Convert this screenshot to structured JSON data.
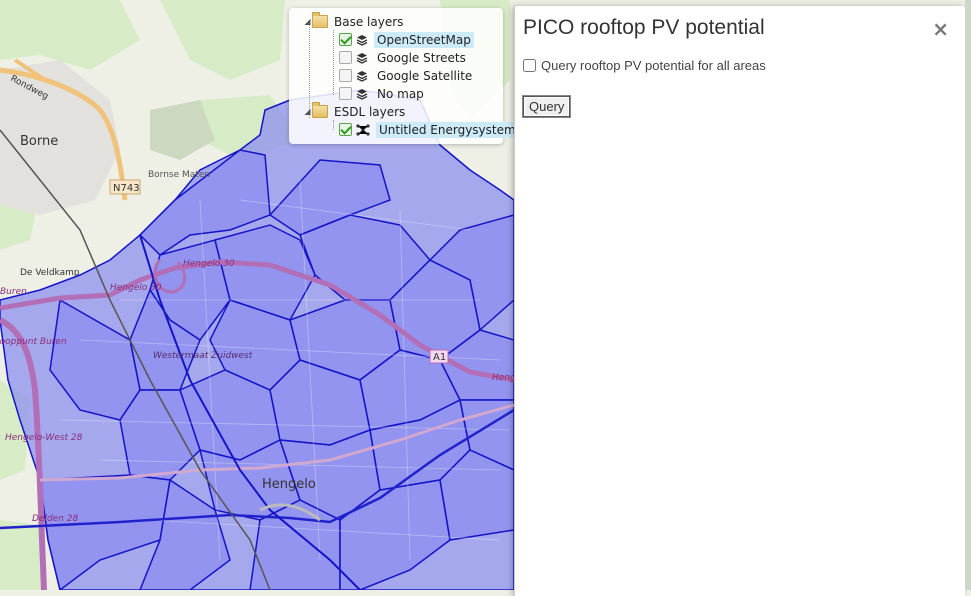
{
  "map": {
    "places": [
      "Borne",
      "Bornse Maten",
      "Rondweg",
      "N743",
      "De Veldkamp",
      "Buren",
      "Knooppunt Buren",
      "Hengelo 30",
      "Hengelo 30",
      "Westermaat Zuidwest",
      "Hengelo-West 28",
      "Delden 28",
      "Hengelo",
      "A1",
      "Heng"
    ],
    "colors": {
      "background": "#eef0e6",
      "area_fill": "#8a8cf0",
      "area_border": "#1515c8",
      "highway": "#b26fb8",
      "park": "#cfe6bd"
    }
  },
  "layer_tree": {
    "base_group": "Base layers",
    "base_layers": [
      {
        "label": "OpenStreetMap",
        "checked": true,
        "selected": true,
        "icon": "layers-icon"
      },
      {
        "label": "Google Streets",
        "checked": false,
        "selected": false,
        "icon": "layers-icon"
      },
      {
        "label": "Google Satellite",
        "checked": false,
        "selected": false,
        "icon": "layers-icon"
      },
      {
        "label": "No map",
        "checked": false,
        "selected": false,
        "icon": "layers-icon"
      }
    ],
    "esdl_group": "ESDL layers",
    "esdl_layers": [
      {
        "label": "Untitled Energysystem",
        "checked": true,
        "selected": true,
        "icon": "energysystem-icon"
      }
    ]
  },
  "panel": {
    "title": "PICO rooftop PV potential",
    "close": "×",
    "checkbox_label": "Query rooftop PV potential for all areas",
    "checkbox_checked": false,
    "query_button": "Query"
  }
}
